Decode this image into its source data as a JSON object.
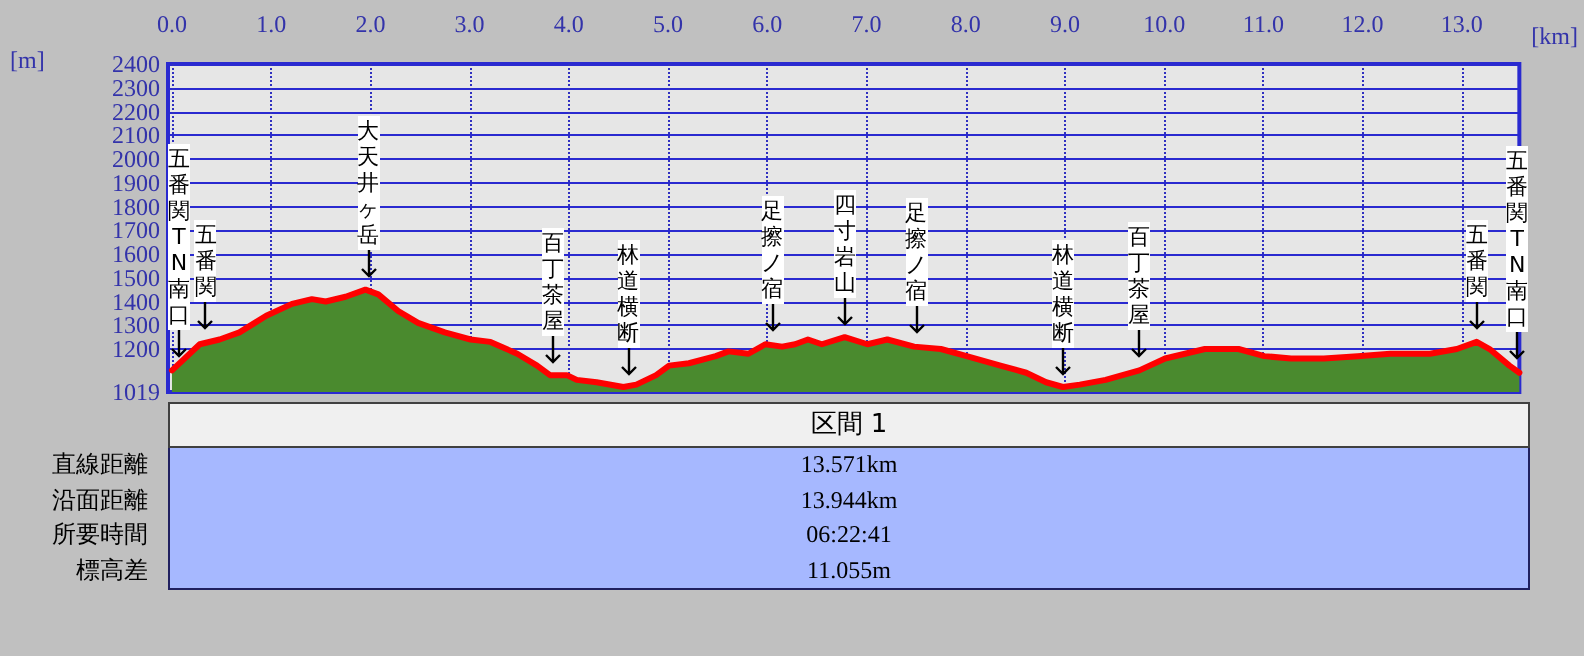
{
  "chart_data": [
    {
      "type": "area",
      "xlabel": "[km]",
      "ylabel": "[m]",
      "x": [
        0,
        0.28,
        0.48,
        0.68,
        0.95,
        1.21,
        1.41,
        1.55,
        1.75,
        1.95,
        2.08,
        2.28,
        2.48,
        2.75,
        3.01,
        3.21,
        3.48,
        3.68,
        3.81,
        3.98,
        4.08,
        4.28,
        4.55,
        4.68,
        4.88,
        5.01,
        5.21,
        5.48,
        5.61,
        5.81,
        5.98,
        6.15,
        6.28,
        6.41,
        6.55,
        6.78,
        7.01,
        7.21,
        7.48,
        7.75,
        8.01,
        8.35,
        8.61,
        8.81,
        8.98,
        9.15,
        9.41,
        9.75,
        10.01,
        10.21,
        10.41,
        10.75,
        11.01,
        11.28,
        11.61,
        11.95,
        12.28,
        12.68,
        12.95,
        13.15,
        13.28,
        13.48,
        13.58
      ],
      "series": [
        {
          "type": "area",
          "color": "#4a8a2e",
          "values": [
            1110,
            1220,
            1240,
            1270,
            1340,
            1390,
            1410,
            1400,
            1420,
            1450,
            1430,
            1360,
            1310,
            1270,
            1240,
            1230,
            1180,
            1130,
            1090,
            1090,
            1070,
            1060,
            1040,
            1050,
            1090,
            1130,
            1140,
            1170,
            1190,
            1180,
            1220,
            1210,
            1220,
            1240,
            1220,
            1250,
            1220,
            1240,
            1210,
            1200,
            1170,
            1130,
            1100,
            1060,
            1040,
            1050,
            1070,
            1110,
            1160,
            1180,
            1200,
            1200,
            1170,
            1160,
            1160,
            1170,
            1180,
            1180,
            1200,
            1230,
            1200,
            1130,
            1100
          ]
        },
        {
          "type": "line",
          "color": "#ff0000",
          "values": [
            1110,
            1220,
            1240,
            1270,
            1340,
            1390,
            1410,
            1400,
            1420,
            1450,
            1430,
            1360,
            1310,
            1270,
            1240,
            1230,
            1180,
            1130,
            1090,
            1090,
            1070,
            1060,
            1040,
            1050,
            1090,
            1130,
            1140,
            1170,
            1190,
            1180,
            1220,
            1210,
            1220,
            1240,
            1220,
            1250,
            1220,
            1240,
            1210,
            1200,
            1170,
            1130,
            1100,
            1060,
            1040,
            1050,
            1070,
            1110,
            1160,
            1180,
            1200,
            1200,
            1170,
            1160,
            1160,
            1170,
            1180,
            1180,
            1200,
            1230,
            1200,
            1130,
            1100
          ]
        }
      ],
      "xlim": [
        -0.04,
        13.58
      ],
      "xticks": [
        {
          "value": 0,
          "label": "0.0"
        },
        {
          "value": 1,
          "label": "1.0"
        },
        {
          "value": 2,
          "label": "2.0"
        },
        {
          "value": 3,
          "label": "3.0"
        },
        {
          "value": 4,
          "label": "4.0"
        },
        {
          "value": 5,
          "label": "5.0"
        },
        {
          "value": 6,
          "label": "6.0"
        },
        {
          "value": 7,
          "label": "7.0"
        },
        {
          "value": 8,
          "label": "8.0"
        },
        {
          "value": 9,
          "label": "9.0"
        },
        {
          "value": 10,
          "label": "10.0"
        },
        {
          "value": 11,
          "label": "11.0"
        },
        {
          "value": 12,
          "label": "12.0"
        },
        {
          "value": 13,
          "label": "13.0"
        }
      ],
      "ylim": [
        1019,
        2400
      ],
      "yticks": [
        1019,
        1200,
        1300,
        1400,
        1500,
        1600,
        1700,
        1800,
        1900,
        2000,
        2100,
        2200,
        2300,
        2400
      ],
      "grid": true,
      "annotations": [
        {
          "text": "五番関TN南口",
          "x": 0,
          "y": 1110
        },
        {
          "text": "五番関",
          "x": 0.34,
          "y": 1230
        },
        {
          "text": "大天井ヶ岳",
          "x": 1.98,
          "y": 1450
        },
        {
          "text": "百丁茶屋",
          "x": 3.84,
          "y": 1090
        },
        {
          "text": "林道横断",
          "x": 4.6,
          "y": 1040
        },
        {
          "text": "足擦ノ宿",
          "x": 6.05,
          "y": 1220
        },
        {
          "text": "四寸岩山",
          "x": 6.78,
          "y": 1250
        },
        {
          "text": "足擦ノ宿",
          "x": 7.5,
          "y": 1210
        },
        {
          "text": "林道横断",
          "x": 8.98,
          "y": 1040
        },
        {
          "text": "百丁茶屋",
          "x": 9.75,
          "y": 1110
        },
        {
          "text": "五番関",
          "x": 13.15,
          "y": 1230
        },
        {
          "text": "五番関TN南口",
          "x": 13.56,
          "y": 1100
        }
      ]
    },
    {
      "type": "other",
      "title": "区間 1",
      "categories": [
        "直線距離",
        "沿面距離",
        "所要時間",
        "標高差"
      ],
      "value_labels": [
        "13.571km",
        "13.944km",
        "06:22:41",
        "11.055m"
      ]
    }
  ]
}
